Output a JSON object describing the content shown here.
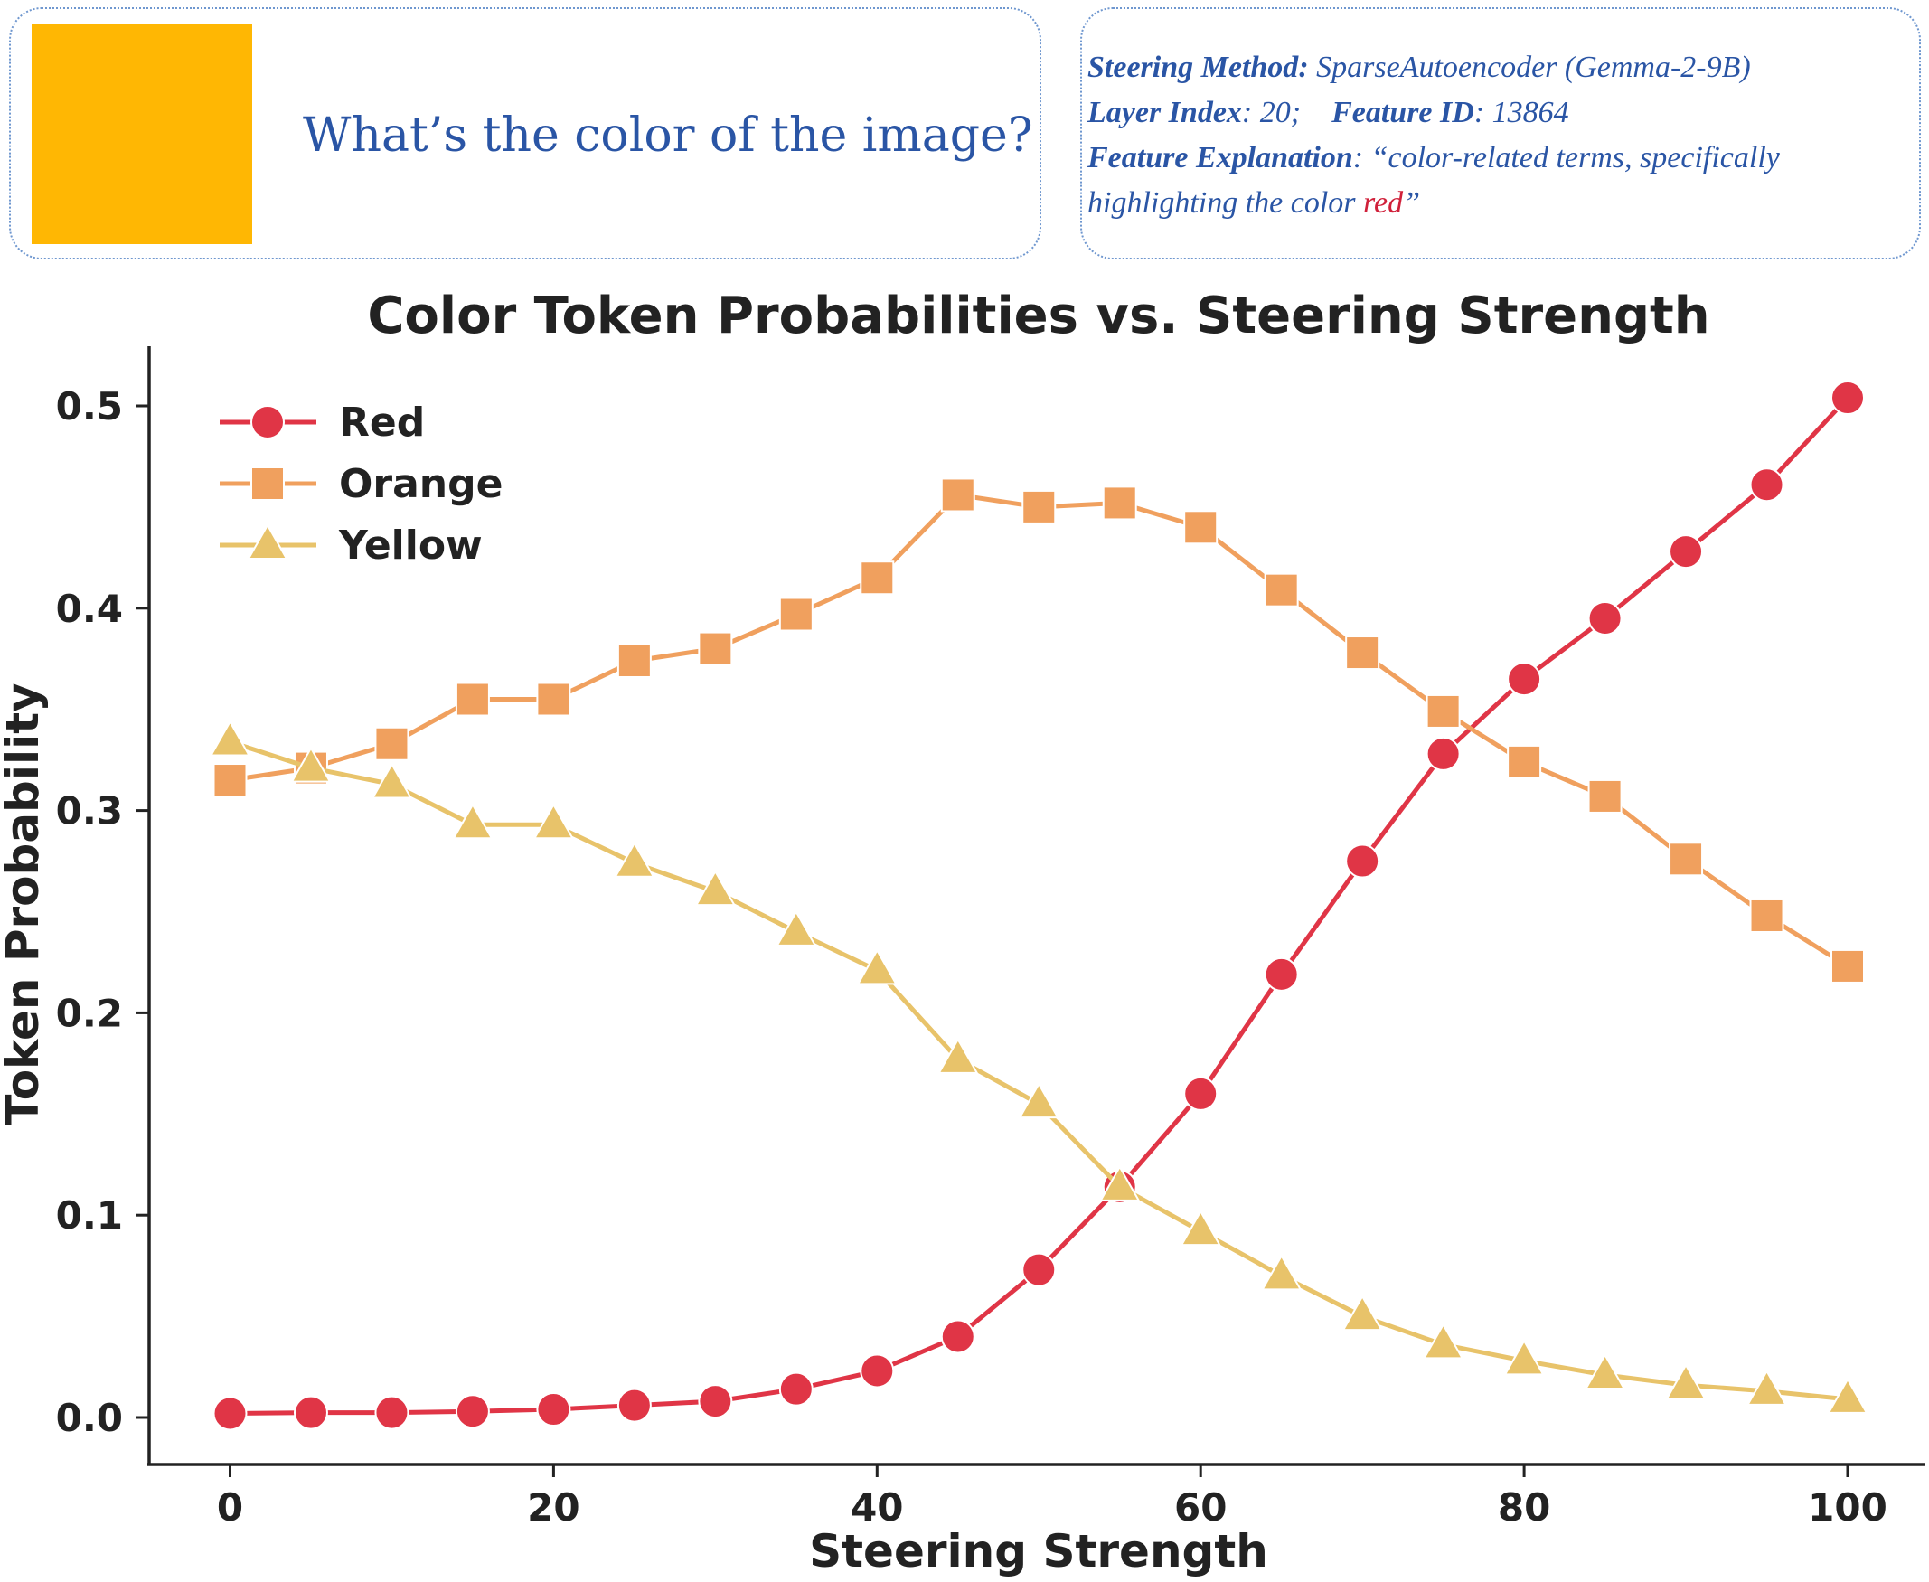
{
  "prompt_panel": {
    "image_color": "#ffb703",
    "question": "What’s the color of the image?"
  },
  "info_panel": {
    "method_label": "Steering Method",
    "method_value": "SparseAutoencoder (Gemma-2-9B)",
    "layer_label": "Layer Index",
    "layer_value": "20;",
    "feature_label": "Feature ID",
    "feature_value": "13864",
    "explanation_label": "Feature Explanation",
    "explanation_value_1": "“color-related terms, specifically",
    "explanation_value_2": "highlighting the color ",
    "explanation_highlight": "red",
    "explanation_end": "”",
    "highlight_color": "#d0203a"
  },
  "chart_data": {
    "type": "line",
    "title": "Color Token Probabilities vs. Steering Strength",
    "xlabel": "Steering Strength",
    "ylabel": "Token Probability",
    "xlim": [
      -5,
      105
    ],
    "ylim": [
      -0.023,
      0.53
    ],
    "xticks": [
      "0",
      "20",
      "40",
      "60",
      "80",
      "100"
    ],
    "yticks": [
      "0.0",
      "0.1",
      "0.2",
      "0.3",
      "0.4",
      "0.5"
    ],
    "grid": false,
    "legend_position": "top-left",
    "x": [
      0,
      5,
      10,
      15,
      20,
      25,
      30,
      35,
      40,
      45,
      50,
      55,
      60,
      65,
      70,
      75,
      80,
      85,
      90,
      95,
      100
    ],
    "series": [
      {
        "name": "Red",
        "color": "#e03546",
        "marker": "circle",
        "values": [
          0.002,
          0.0024,
          0.0024,
          0.003,
          0.004,
          0.006,
          0.008,
          0.014,
          0.023,
          0.04,
          0.073,
          0.114,
          0.16,
          0.219,
          0.275,
          0.328,
          0.365,
          0.395,
          0.428,
          0.461,
          0.504
        ]
      },
      {
        "name": "Orange",
        "color": "#f0a05e",
        "marker": "square",
        "values": [
          0.315,
          0.321,
          0.333,
          0.355,
          0.355,
          0.374,
          0.38,
          0.397,
          0.415,
          0.456,
          0.45,
          0.452,
          0.44,
          0.409,
          0.378,
          0.349,
          0.324,
          0.307,
          0.276,
          0.248,
          0.223
        ]
      },
      {
        "name": "Yellow",
        "color": "#e8c36a",
        "marker": "triangle",
        "values": [
          0.334,
          0.321,
          0.313,
          0.293,
          0.293,
          0.274,
          0.26,
          0.24,
          0.221,
          0.177,
          0.155,
          0.114,
          0.092,
          0.07,
          0.05,
          0.036,
          0.028,
          0.021,
          0.016,
          0.013,
          0.009
        ]
      }
    ]
  }
}
